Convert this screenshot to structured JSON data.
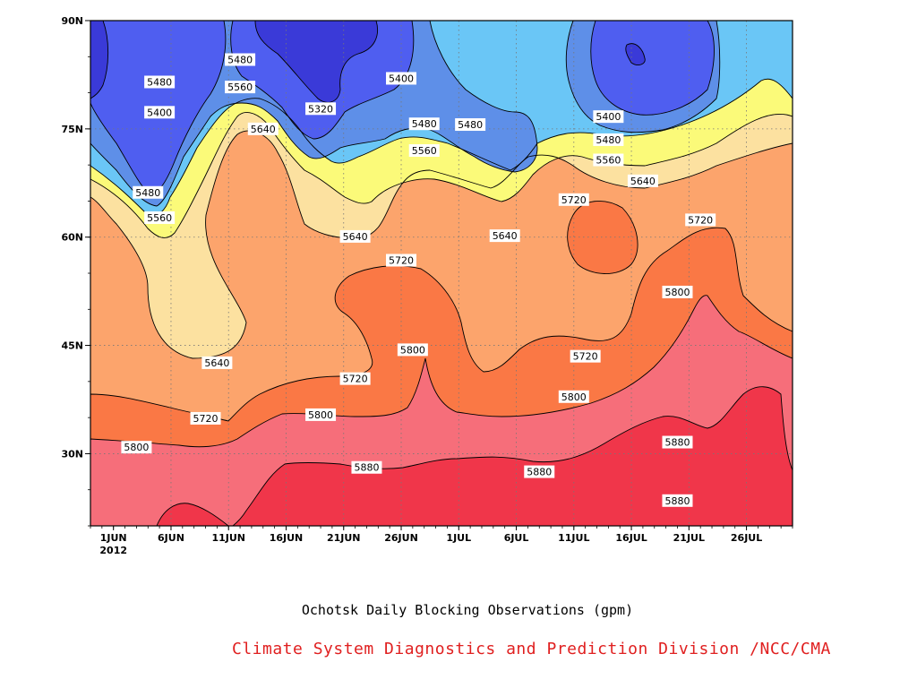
{
  "chart_data": {
    "type": "heatmap",
    "title": "Ochotsk Daily Blocking Observations (gpm)",
    "credit": "Climate System Diagnostics and Prediction Division /NCC/CMA",
    "x_axis": {
      "start": "2012-05-30",
      "end": "2012-07-30",
      "ticks": [
        "1JUN",
        "6JUN",
        "11JUN",
        "16JUN",
        "21JUN",
        "26JUN",
        "1JUL",
        "6JUL",
        "11JUL",
        "16JUL",
        "21JUL",
        "26JUL"
      ],
      "year_label": "2012"
    },
    "y_axis": {
      "range": [
        20,
        90
      ],
      "ticks": [
        {
          "value": 30,
          "label": "30N"
        },
        {
          "value": 45,
          "label": "45N"
        },
        {
          "value": 60,
          "label": "60N"
        },
        {
          "value": 75,
          "label": "75N"
        },
        {
          "value": 90,
          "label": "90N"
        }
      ]
    },
    "grid": true,
    "contour_levels": [
      5320,
      5400,
      5480,
      5560,
      5640,
      5720,
      5800,
      5880
    ],
    "colors": {
      "below_5320": "#3a3ad8",
      "5320_5400": "#4f5ef0",
      "5400_5480": "#5e8fe8",
      "5480_5560": "#6ac6f6",
      "5560_5640": "#fbfa79",
      "5640_5720": "#fce1a0",
      "5720_5800": "#fca46c",
      "5800_5880": "#fa7845",
      "5880_5960": "#f66e7a",
      "above_5960": "#f0364a"
    },
    "contour_labels": [
      {
        "text": "5480",
        "date": "2012-06-05",
        "lat": 81.5
      },
      {
        "text": "5400",
        "date": "2012-06-05",
        "lat": 77.3
      },
      {
        "text": "5480",
        "date": "2012-06-04",
        "lat": 66.2
      },
      {
        "text": "5560",
        "date": "2012-06-05",
        "lat": 62.7
      },
      {
        "text": "5480",
        "date": "2012-06-12",
        "lat": 84.6
      },
      {
        "text": "5560",
        "date": "2012-06-12",
        "lat": 80.8
      },
      {
        "text": "5640",
        "date": "2012-06-14",
        "lat": 75.0
      },
      {
        "text": "5320",
        "date": "2012-06-19",
        "lat": 77.8
      },
      {
        "text": "5400",
        "date": "2012-06-26",
        "lat": 82.0
      },
      {
        "text": "5480",
        "date": "2012-06-28",
        "lat": 75.7
      },
      {
        "text": "5560",
        "date": "2012-06-28",
        "lat": 72.0
      },
      {
        "text": "5640",
        "date": "2012-06-22",
        "lat": 60.1
      },
      {
        "text": "5720",
        "date": "2012-06-26",
        "lat": 56.8
      },
      {
        "text": "5480",
        "date": "2012-07-02",
        "lat": 75.6
      },
      {
        "text": "5640",
        "date": "2012-07-05",
        "lat": 60.2
      },
      {
        "text": "5720",
        "date": "2012-07-11",
        "lat": 65.2
      },
      {
        "text": "5400",
        "date": "2012-07-14",
        "lat": 76.7
      },
      {
        "text": "5480",
        "date": "2012-07-14",
        "lat": 73.5
      },
      {
        "text": "5560",
        "date": "2012-07-14",
        "lat": 70.7
      },
      {
        "text": "5640",
        "date": "2012-07-17",
        "lat": 67.8
      },
      {
        "text": "5720",
        "date": "2012-07-22",
        "lat": 62.4
      },
      {
        "text": "5800",
        "date": "2012-07-20",
        "lat": 52.4
      },
      {
        "text": "5720",
        "date": "2012-07-12",
        "lat": 43.5
      },
      {
        "text": "5640",
        "date": "2012-06-10",
        "lat": 42.6
      },
      {
        "text": "5720",
        "date": "2012-06-22",
        "lat": 40.4
      },
      {
        "text": "5800",
        "date": "2012-06-27",
        "lat": 44.4
      },
      {
        "text": "5800",
        "date": "2012-06-19",
        "lat": 35.4
      },
      {
        "text": "5720",
        "date": "2012-06-09",
        "lat": 34.9
      },
      {
        "text": "5800",
        "date": "2012-06-03",
        "lat": 30.9
      },
      {
        "text": "5880",
        "date": "2012-06-23",
        "lat": 28.1
      },
      {
        "text": "5800",
        "date": "2012-07-11",
        "lat": 37.9
      },
      {
        "text": "5880",
        "date": "2012-07-08",
        "lat": 27.5
      },
      {
        "text": "5880",
        "date": "2012-07-20",
        "lat": 31.6
      },
      {
        "text": "5880",
        "date": "2012-07-20",
        "lat": 23.5
      }
    ]
  }
}
